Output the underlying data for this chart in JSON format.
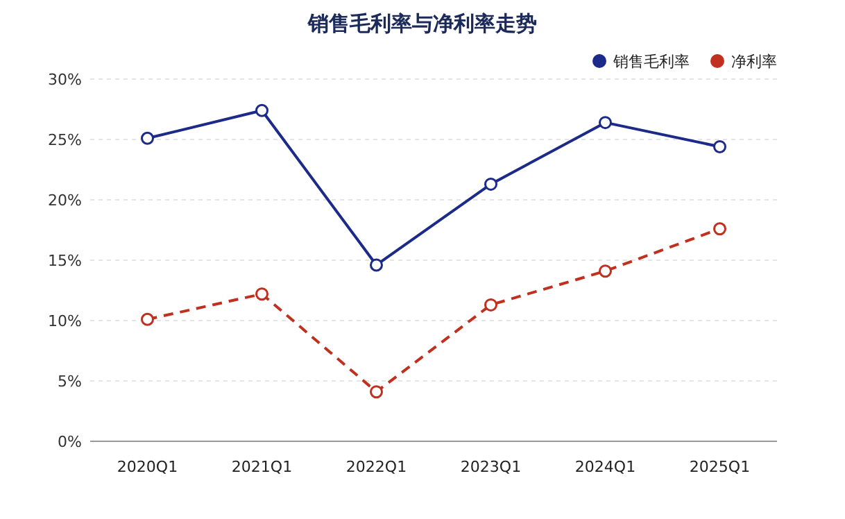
{
  "chart_data": {
    "type": "line",
    "title": "销售毛利率与净利率走势",
    "categories": [
      "2020Q1",
      "2021Q1",
      "2022Q1",
      "2023Q1",
      "2024Q1",
      "2025Q1"
    ],
    "series": [
      {
        "name": "销售毛利率",
        "color": "#1c2a8a",
        "values": [
          25.1,
          27.4,
          14.6,
          21.3,
          26.4,
          24.4
        ],
        "line_style": "solid"
      },
      {
        "name": "净利率",
        "color": "#c0301f",
        "values": [
          10.1,
          12.2,
          4.1,
          11.3,
          14.1,
          17.6
        ],
        "line_style": "dashed"
      }
    ],
    "ylim": [
      0,
      30
    ],
    "yticks": [
      {
        "value": 0,
        "label": "0%"
      },
      {
        "value": 5,
        "label": "5%"
      },
      {
        "value": 10,
        "label": "10%"
      },
      {
        "value": 15,
        "label": "15%"
      },
      {
        "value": 20,
        "label": "20%"
      },
      {
        "value": 25,
        "label": "25%"
      },
      {
        "value": 30,
        "label": "30%"
      }
    ],
    "grid": "y",
    "legend": "top right",
    "marker": "circle"
  }
}
